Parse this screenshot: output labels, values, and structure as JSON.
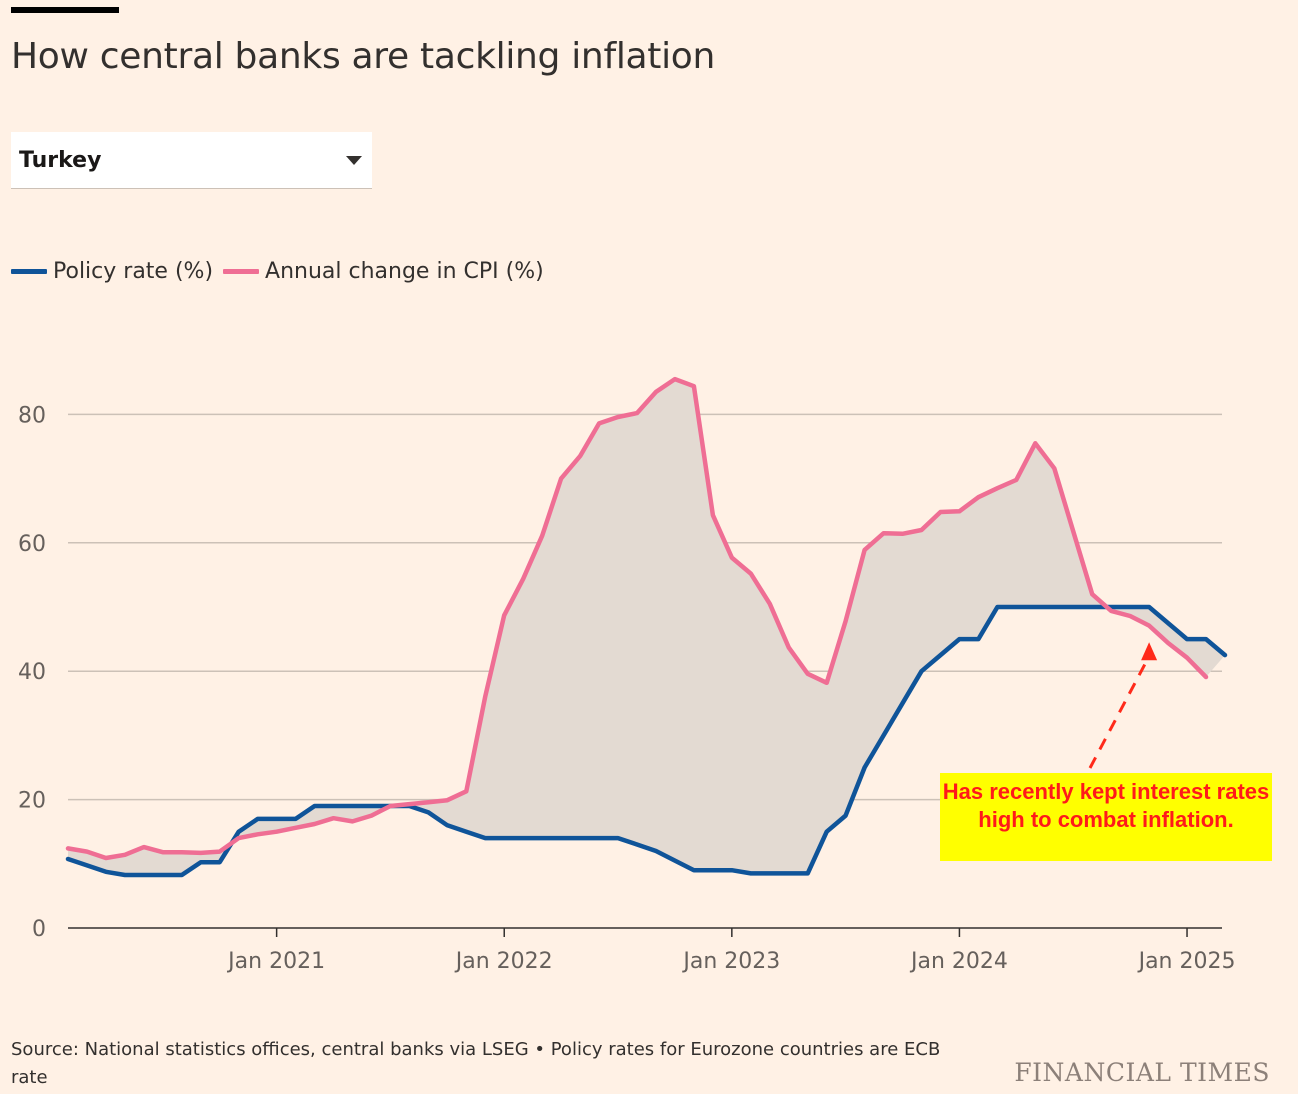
{
  "header": {
    "title": "How central banks are tackling inflation"
  },
  "selector": {
    "selected": "Turkey"
  },
  "legend": {
    "items": [
      {
        "label": "Policy rate (%)",
        "color": "#0f5499"
      },
      {
        "label": "Annual change in CPI (%)",
        "color": "#ef6e94"
      }
    ]
  },
  "chart_data": {
    "type": "line",
    "x_range": [
      "2020-02",
      "2025-03"
    ],
    "ylim": [
      0,
      85
    ],
    "yticks": [
      0,
      20,
      40,
      60,
      80
    ],
    "xticks": [
      "Jan 2021",
      "Jan 2022",
      "Jan 2023",
      "Jan 2024",
      "Jan 2025"
    ],
    "grid": true,
    "legend_position": "top-left",
    "fill_between": {
      "color": "#e3dad2"
    },
    "series": [
      {
        "name": "Policy rate (%)",
        "color": "#0f5499",
        "x": [
          "2020-02",
          "2020-03",
          "2020-04",
          "2020-05",
          "2020-06",
          "2020-07",
          "2020-08",
          "2020-09",
          "2020-10",
          "2020-11",
          "2020-12",
          "2021-01",
          "2021-02",
          "2021-03",
          "2021-04",
          "2021-05",
          "2021-06",
          "2021-07",
          "2021-08",
          "2021-09",
          "2021-10",
          "2021-11",
          "2021-12",
          "2022-01",
          "2022-02",
          "2022-03",
          "2022-04",
          "2022-05",
          "2022-06",
          "2022-07",
          "2022-08",
          "2022-09",
          "2022-10",
          "2022-11",
          "2022-12",
          "2023-01",
          "2023-02",
          "2023-03",
          "2023-04",
          "2023-05",
          "2023-06",
          "2023-07",
          "2023-08",
          "2023-09",
          "2023-10",
          "2023-11",
          "2023-12",
          "2024-01",
          "2024-02",
          "2024-03",
          "2024-04",
          "2024-05",
          "2024-06",
          "2024-07",
          "2024-08",
          "2024-09",
          "2024-10",
          "2024-11",
          "2024-12",
          "2025-01",
          "2025-02",
          "2025-03"
        ],
        "values": [
          10.75,
          9.75,
          8.75,
          8.25,
          8.25,
          8.25,
          8.25,
          10.25,
          10.25,
          15,
          17,
          17,
          17,
          19,
          19,
          19,
          19,
          19,
          19,
          18,
          16,
          15,
          14,
          14,
          14,
          14,
          14,
          14,
          14,
          14,
          13,
          12,
          10.5,
          9,
          9,
          9,
          8.5,
          8.5,
          8.5,
          8.5,
          15,
          17.5,
          25,
          30,
          35,
          40,
          42.5,
          45,
          45,
          50,
          50,
          50,
          50,
          50,
          50,
          50,
          50,
          50,
          47.5,
          45,
          45,
          42.5
        ]
      },
      {
        "name": "Annual change in CPI (%)",
        "color": "#ef6e94",
        "x": [
          "2020-02",
          "2020-03",
          "2020-04",
          "2020-05",
          "2020-06",
          "2020-07",
          "2020-08",
          "2020-09",
          "2020-10",
          "2020-11",
          "2020-12",
          "2021-01",
          "2021-02",
          "2021-03",
          "2021-04",
          "2021-05",
          "2021-06",
          "2021-07",
          "2021-08",
          "2021-09",
          "2021-10",
          "2021-11",
          "2021-12",
          "2022-01",
          "2022-02",
          "2022-03",
          "2022-04",
          "2022-05",
          "2022-06",
          "2022-07",
          "2022-08",
          "2022-09",
          "2022-10",
          "2022-11",
          "2022-12",
          "2023-01",
          "2023-02",
          "2023-03",
          "2023-04",
          "2023-05",
          "2023-06",
          "2023-07",
          "2023-08",
          "2023-09",
          "2023-10",
          "2023-11",
          "2023-12",
          "2024-01",
          "2024-02",
          "2024-03",
          "2024-04",
          "2024-05",
          "2024-06",
          "2024-07",
          "2024-08",
          "2024-09",
          "2024-10",
          "2024-11",
          "2024-12",
          "2025-01",
          "2025-02"
        ],
        "values": [
          12.4,
          11.9,
          10.9,
          11.4,
          12.6,
          11.8,
          11.8,
          11.7,
          11.9,
          14.0,
          14.6,
          15.0,
          15.6,
          16.2,
          17.1,
          16.6,
          17.5,
          19.0,
          19.3,
          19.6,
          19.9,
          21.3,
          36.1,
          48.7,
          54.4,
          61.1,
          70.0,
          73.5,
          78.6,
          79.6,
          80.2,
          83.5,
          85.5,
          84.4,
          64.3,
          57.7,
          55.2,
          50.5,
          43.7,
          39.6,
          38.2,
          47.8,
          58.9,
          61.5,
          61.4,
          62.0,
          64.8,
          64.9,
          67.1,
          68.5,
          69.8,
          75.5,
          71.6,
          61.8,
          52.0,
          49.4,
          48.6,
          47.1,
          44.4,
          42.1,
          39.1
        ]
      }
    ],
    "annotation": {
      "text": "Has recently kept interest rates high to combat inflation.",
      "target_x": "2024-11",
      "target_y": 44.5,
      "arrow_color": "#ff2a1a",
      "box_color": "#ffff00",
      "text_color": "#ff1a1a"
    }
  },
  "footer": {
    "source": "Source: National statistics offices, central banks via LSEG • Policy rates for Eurozone countries are ECB rate",
    "brand": "FINANCIAL TIMES"
  }
}
